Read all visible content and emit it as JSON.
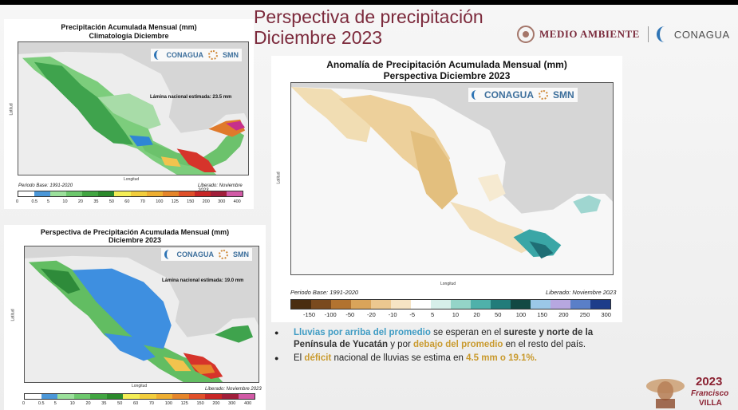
{
  "header": {
    "title_line1": "Perspectiva de precipitación",
    "title_line2": "Diciembre 2023",
    "logo1": "MEDIO AMBIENTE",
    "logo2": "CONAGUA"
  },
  "colors": {
    "title": "#7c2a3c",
    "highlight_blue": "#3f9cc4",
    "highlight_gold": "#c99a2e"
  },
  "panel_climatology": {
    "title_line1": "Precipitación Acumulada Mensual (mm)",
    "title_line2": "Climatología Diciembre",
    "brand1": "CONAGUA",
    "brand2": "SMN",
    "lamina": "Lámina nacional estimada: 23.5 mm",
    "base_period": "Periodo Base: 1991-2020",
    "released": "Liberado: Noviembre 2023",
    "xlabel": "Longitud",
    "ylabel": "Latitud",
    "colorbar_ticks": [
      "0",
      "0.5",
      "5",
      "10",
      "20",
      "35",
      "50",
      "60",
      "70",
      "100",
      "125",
      "150",
      "200",
      "300",
      "400"
    ]
  },
  "panel_outlook": {
    "title_line1": "Perspectiva de Precipitación Acumulada Mensual (mm)",
    "title_line2": "Diciembre 2023",
    "brand1": "CONAGUA",
    "brand2": "SMN",
    "lamina": "Lámina nacional estimada: 19.0 mm",
    "released": "Liberado: Noviembre 2023",
    "xlabel": "Longitud",
    "ylabel": "Latitud",
    "colorbar_ticks": [
      "0",
      "0.5",
      "5",
      "10",
      "20",
      "35",
      "50",
      "60",
      "70",
      "100",
      "125",
      "150",
      "200",
      "300",
      "400"
    ]
  },
  "panel_anomaly": {
    "title_line1": "Anomalía de Precipitación Acumulada Mensual (mm)",
    "title_line2": "Perspectiva Diciembre 2023",
    "brand1": "CONAGUA",
    "brand2": "SMN",
    "base_period": "Periodo Base: 1991-2020",
    "released": "Liberado: Noviembre 2023",
    "xlabel": "Longitud",
    "ylabel": "Latitud",
    "colorbar_ticks": [
      "-150",
      "-100",
      "-50",
      "-20",
      "-10",
      "-5",
      "5",
      "10",
      "20",
      "50",
      "100",
      "150",
      "200",
      "250",
      "300"
    ]
  },
  "bullets": {
    "b1_part1": "Lluvias por arriba del promedio",
    "b1_part2": " se esperan en el ",
    "b1_part3": "sureste y norte de la Península de Yucatán",
    "b1_part4": " y por ",
    "b1_part5": "debajo del promedio",
    "b1_part6": " en el resto del país.",
    "b2_part1": "El ",
    "b2_part2": "déficit",
    "b2_part3": " nacional de lluvias se estima en ",
    "b2_part4": "4.5 mm o 19.1%."
  },
  "footer": {
    "year": "2023",
    "name1": "Francisco",
    "name2": "VILLA"
  }
}
